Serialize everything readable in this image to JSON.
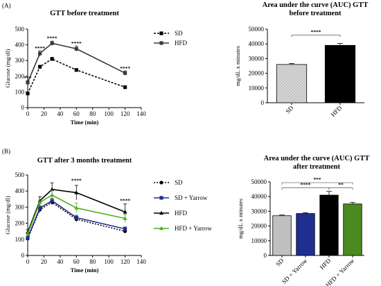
{
  "panels": {
    "a": "(A)",
    "b": "(B)"
  },
  "chart_data": [
    {
      "type": "line",
      "title": "GTT before treatment",
      "xlabel": "Time (min)",
      "ylabel": "Glucose (mg/dl)",
      "xlim": [
        0,
        140
      ],
      "ylim": [
        0,
        500
      ],
      "xticks": [
        0,
        20,
        40,
        60,
        80,
        100,
        120,
        140
      ],
      "yticks": [
        0,
        100,
        200,
        300,
        400,
        500
      ],
      "x": [
        0,
        15,
        30,
        60,
        120
      ],
      "series": [
        {
          "name": "SD",
          "values": [
            90,
            260,
            310,
            240,
            130
          ],
          "errors": [
            5,
            10,
            10,
            8,
            8
          ],
          "color": "#000000",
          "dash": "3,2",
          "marker": "square"
        },
        {
          "name": "HFD",
          "values": [
            160,
            345,
            410,
            375,
            220
          ],
          "errors": [
            12,
            18,
            14,
            18,
            14
          ],
          "color": "#3a3a3a",
          "dash": "",
          "marker": "square"
        }
      ],
      "annotations": [
        {
          "x": 0,
          "y": 178,
          "text": "***"
        },
        {
          "x": 15,
          "y": 368,
          "text": "****"
        },
        {
          "x": 30,
          "y": 432,
          "text": "****"
        },
        {
          "x": 60,
          "y": 398,
          "text": "****"
        },
        {
          "x": 120,
          "y": 240,
          "text": "****"
        }
      ],
      "legend": "right"
    },
    {
      "type": "bar",
      "title": "Area under the curve (AUC) GTT before treatment",
      "title_lines": [
        "Area under the curve (AUC) GTT",
        "before treatment"
      ],
      "ylabel": "mg/dL x minutes",
      "ylim": [
        0,
        50000
      ],
      "yticks": [
        0,
        10000,
        20000,
        30000,
        40000,
        50000
      ],
      "categories": [
        "SD",
        "HFD"
      ],
      "values": [
        26000,
        39000
      ],
      "errors": [
        700,
        1300
      ],
      "colors": [
        "#c8c8c8",
        "#000000"
      ],
      "hatched": [
        true,
        false
      ],
      "significance": [
        {
          "from": 0,
          "to": 1,
          "y": 46000,
          "text": "****"
        }
      ]
    },
    {
      "type": "line",
      "title": "GTT after 3 months treatment",
      "xlabel": "Time (min)",
      "ylabel": "Glucose (mg/dl)",
      "xlim": [
        0,
        140
      ],
      "ylim": [
        0,
        500
      ],
      "xticks": [
        0,
        20,
        40,
        60,
        80,
        100,
        120,
        140
      ],
      "yticks": [
        0,
        100,
        200,
        300,
        400,
        500
      ],
      "x": [
        0,
        15,
        30,
        60,
        120
      ],
      "series": [
        {
          "name": "SD",
          "values": [
            105,
            285,
            330,
            225,
            150
          ],
          "errors": [
            8,
            15,
            15,
            15,
            10
          ],
          "color": "#000000",
          "dash": "2,2",
          "marker": "circle"
        },
        {
          "name": "SD + Yarrow",
          "values": [
            110,
            295,
            340,
            235,
            165
          ],
          "errors": [
            8,
            15,
            15,
            15,
            12
          ],
          "color": "#1f2f8f",
          "dash": "",
          "marker": "square"
        },
        {
          "name": "HFD",
          "values": [
            145,
            340,
            410,
            390,
            270
          ],
          "errors": [
            15,
            25,
            40,
            45,
            50
          ],
          "color": "#000000",
          "dash": "",
          "marker": "triangle"
        },
        {
          "name": "HFD + Yarrow",
          "values": [
            135,
            330,
            375,
            295,
            230
          ],
          "errors": [
            12,
            20,
            30,
            30,
            25
          ],
          "color": "#4caf1e",
          "dash": "",
          "marker": "triangle"
        }
      ],
      "annotations": [
        {
          "x": 60,
          "y": 455,
          "text": "****"
        },
        {
          "x": 120,
          "y": 330,
          "text": "****"
        }
      ],
      "legend": "right"
    },
    {
      "type": "bar",
      "title": "Area under the curve (AUC) GTT after treatment",
      "title_lines": [
        "Area under the curve (AUC) GTT",
        "after treatment"
      ],
      "ylabel": "mg/dL x minutes",
      "ylim": [
        0,
        50000
      ],
      "yticks": [
        0,
        10000,
        20000,
        30000,
        40000,
        50000
      ],
      "categories": [
        "SD",
        "SD + Yarrow",
        "HFD",
        "HFD + Yarrow"
      ],
      "values": [
        27000,
        28500,
        41000,
        35000
      ],
      "errors": [
        500,
        600,
        2500,
        1000
      ],
      "colors": [
        "#c0c0c0",
        "#1f2f8f",
        "#000000",
        "#4a8a1e"
      ],
      "hatched": [
        false,
        false,
        false,
        false
      ],
      "significance": [
        {
          "from": 0,
          "to": 3,
          "y": 49500,
          "text": "***"
        },
        {
          "from": 0,
          "to": 2,
          "y": 46000,
          "text": "****"
        },
        {
          "from": 2,
          "to": 3,
          "y": 46000,
          "text": "**"
        }
      ]
    }
  ]
}
